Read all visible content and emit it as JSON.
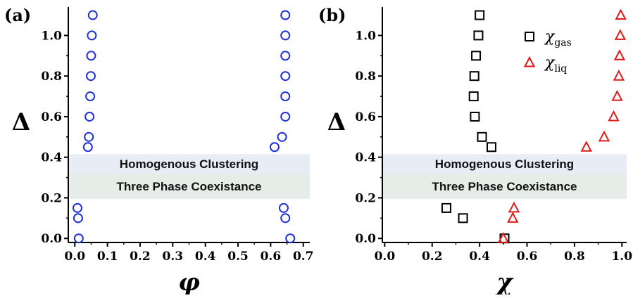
{
  "chart_data": [
    {
      "panel_label": "(a)",
      "type": "scatter",
      "xlabel": "φ",
      "ylabel": "Δ",
      "xlim": [
        -0.02,
        0.72
      ],
      "ylim": [
        -0.02,
        1.14
      ],
      "xticks": [
        "0.0",
        "0.1",
        "0.2",
        "0.3",
        "0.4",
        "0.5",
        "0.6",
        "0.7"
      ],
      "yticks": [
        "0.0",
        "0.2",
        "0.4",
        "0.6",
        "0.8",
        "1.0"
      ],
      "bands": [
        {
          "label": "Homogenous Clustering",
          "y0": 0.32,
          "y1": 0.415,
          "color": "#e8ecf5"
        },
        {
          "label": "Three Phase Coexistance",
          "y0": 0.195,
          "y1": 0.32,
          "color": "#e6ece8"
        }
      ],
      "series": [
        {
          "name": "",
          "marker": "circle",
          "color": "#1f2fd6",
          "points": [
            [
              0.055,
              1.1
            ],
            [
              0.052,
              1.0
            ],
            [
              0.05,
              0.9
            ],
            [
              0.049,
              0.8
            ],
            [
              0.047,
              0.7
            ],
            [
              0.045,
              0.6
            ],
            [
              0.043,
              0.5
            ],
            [
              0.04,
              0.45
            ],
            [
              0.008,
              0.15
            ],
            [
              0.01,
              0.1
            ],
            [
              0.012,
              0.0
            ],
            [
              0.645,
              1.1
            ],
            [
              0.645,
              1.0
            ],
            [
              0.645,
              0.9
            ],
            [
              0.645,
              0.8
            ],
            [
              0.645,
              0.7
            ],
            [
              0.645,
              0.6
            ],
            [
              0.635,
              0.5
            ],
            [
              0.612,
              0.45
            ],
            [
              0.64,
              0.15
            ],
            [
              0.645,
              0.1
            ],
            [
              0.66,
              0.0
            ]
          ]
        }
      ]
    },
    {
      "panel_label": "(b)",
      "type": "scatter",
      "xlabel": "χ",
      "ylabel": "Δ",
      "xlim": [
        -0.01,
        1.02
      ],
      "ylim": [
        -0.02,
        1.14
      ],
      "xticks": [
        "0.0",
        "0.2",
        "0.4",
        "0.6",
        "0.8",
        "1.0"
      ],
      "yticks": [
        "0.0",
        "0.2",
        "0.4",
        "0.6",
        "0.8",
        "1.0"
      ],
      "legend_position": "top-right",
      "bands": [
        {
          "label": "Homogenous Clustering",
          "y0": 0.32,
          "y1": 0.415,
          "color": "#e8ecf5"
        },
        {
          "label": "Three Phase Coexistance",
          "y0": 0.195,
          "y1": 0.32,
          "color": "#e6ece8"
        }
      ],
      "series": [
        {
          "name": "χ",
          "subscript": "gas",
          "marker": "square",
          "color": "#000000",
          "points": [
            [
              0.4,
              1.1
            ],
            [
              0.395,
              1.0
            ],
            [
              0.385,
              0.9
            ],
            [
              0.378,
              0.8
            ],
            [
              0.375,
              0.7
            ],
            [
              0.38,
              0.6
            ],
            [
              0.41,
              0.5
            ],
            [
              0.45,
              0.45
            ],
            [
              0.26,
              0.15
            ],
            [
              0.33,
              0.1
            ],
            [
              0.505,
              0.0
            ]
          ]
        },
        {
          "name": "χ",
          "subscript": "liq",
          "marker": "triangle",
          "color": "#e01919",
          "points": [
            [
              0.995,
              1.1
            ],
            [
              0.993,
              1.0
            ],
            [
              0.99,
              0.9
            ],
            [
              0.987,
              0.8
            ],
            [
              0.98,
              0.7
            ],
            [
              0.965,
              0.6
            ],
            [
              0.925,
              0.5
            ],
            [
              0.85,
              0.45
            ],
            [
              0.545,
              0.15
            ],
            [
              0.54,
              0.1
            ],
            [
              0.5,
              0.0
            ]
          ]
        }
      ]
    }
  ]
}
